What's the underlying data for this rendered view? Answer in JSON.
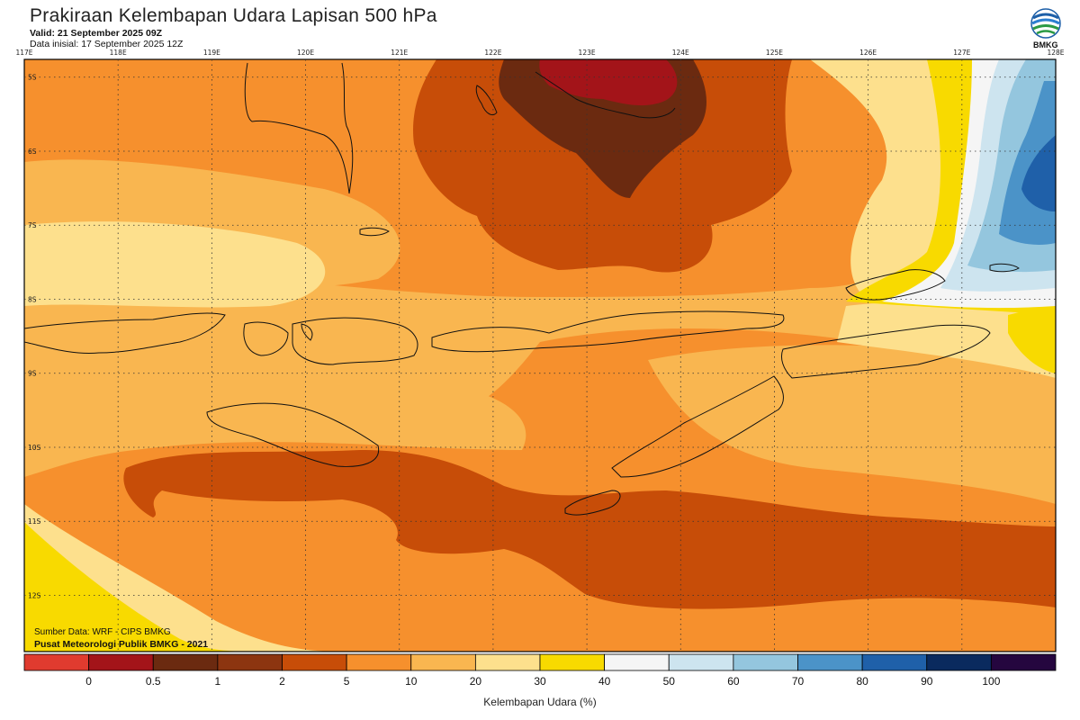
{
  "header": {
    "title": "Prakiraan Kelembapan Udara Lapisan 500 hPa",
    "valid": "Valid: 21 September 2025 09Z",
    "init": "Data inisial: 17 September 2025 12Z"
  },
  "logo": {
    "icon": "bmkg-logo-icon",
    "text": "BMKG"
  },
  "map": {
    "lon_labels": [
      "117E",
      "118E",
      "119E",
      "120E",
      "121E",
      "122E",
      "123E",
      "124E",
      "125E",
      "126E",
      "127E",
      "128E"
    ],
    "lat_labels": [
      "5S",
      "6S",
      "7S",
      "8S",
      "9S",
      "10S",
      "11S",
      "12S"
    ],
    "grid": "dotted"
  },
  "credits": {
    "source": "Sumber Data: WRF - CIPS BMKG",
    "center": "Pusat Meteorologi Publik BMKG - 2021"
  },
  "colorbar": {
    "title": "Kelembapan Udara (%)",
    "colors": [
      "#e03b2f",
      "#a31419",
      "#6b2a10",
      "#8c3510",
      "#c74d08",
      "#f6902d",
      "#f9b650",
      "#fde08d",
      "#f8da00",
      "#f5f5f5",
      "#cde4ef",
      "#94c6de",
      "#4b93c8",
      "#1f60a9",
      "#0a2a5e",
      "#25063f"
    ],
    "labels": [
      "0",
      "0.5",
      "1",
      "2",
      "5",
      "10",
      "20",
      "30",
      "40",
      "50",
      "60",
      "70",
      "80",
      "90",
      "100"
    ]
  },
  "palette": {
    "background_field": "#f9b650",
    "orange": "#f6902d",
    "dark_orange": "#c74d08",
    "brown": "#6b2a10",
    "deep_red": "#a31419",
    "pale": "#fde08d",
    "yellow": "#f8da00",
    "white": "#f5f5f5",
    "light_blue": "#cde4ef",
    "mid_blue": "#94c6de",
    "blue": "#4b93c8",
    "dark_blue": "#1f60a9"
  }
}
